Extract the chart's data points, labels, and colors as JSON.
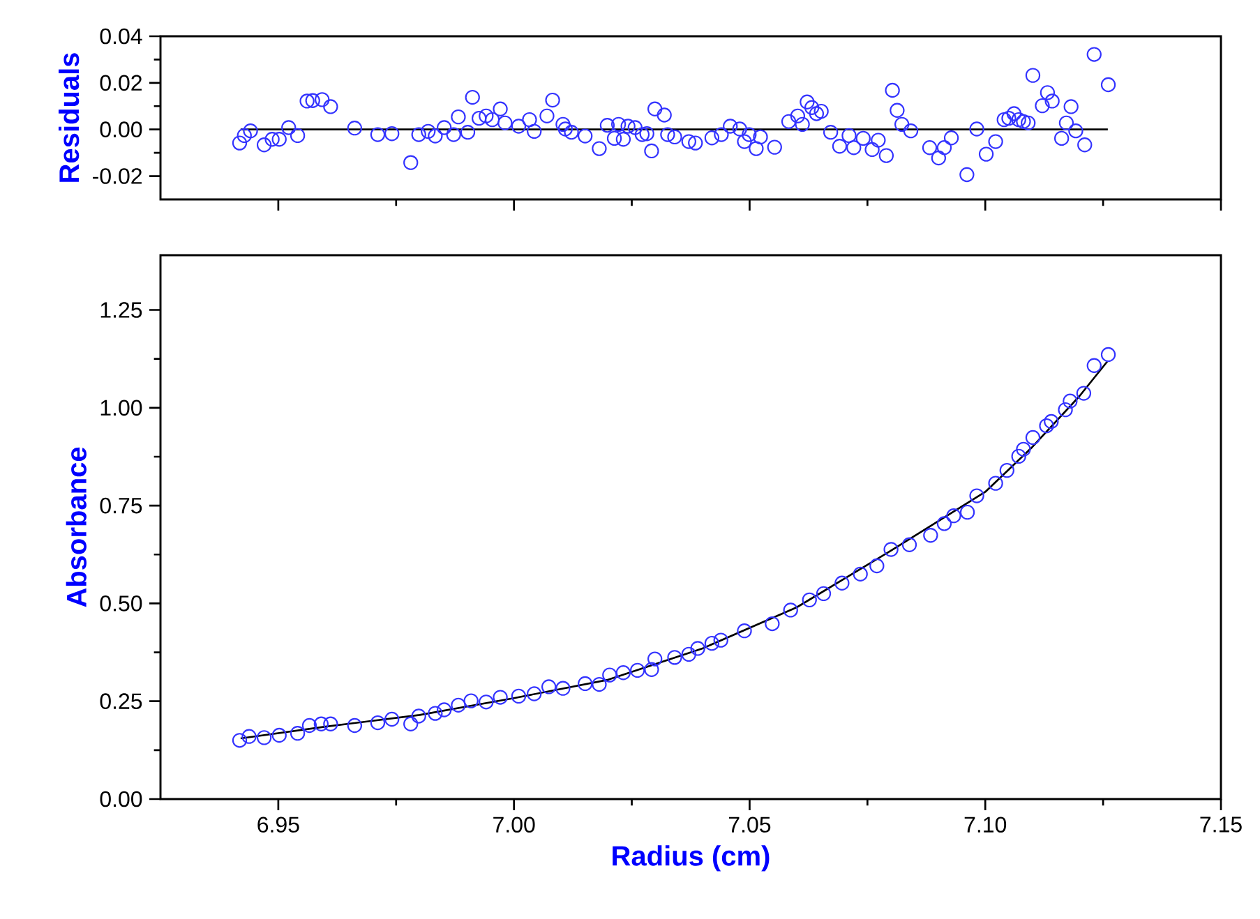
{
  "chart_data": [
    {
      "type": "scatter",
      "ylabel": "Residuals",
      "xlim": [
        6.925,
        7.15
      ],
      "ylim": [
        -0.03,
        0.04
      ],
      "xticks": [
        6.95,
        7.0,
        7.05,
        7.1,
        7.15
      ],
      "yticks": [
        {
          "value": 0.04,
          "label": "0.04"
        },
        {
          "value": 0.02,
          "label": "0.02"
        },
        {
          "value": 0.0,
          "label": "0.00"
        },
        {
          "value": -0.02,
          "label": "-0.02"
        }
      ],
      "tick_labels": "y",
      "series": [
        {
          "marker": "circle",
          "color": "#3333ff",
          "x": [
            6.9418,
            6.9428,
            6.9441,
            6.947,
            6.9487,
            6.9502,
            6.9522,
            6.9541,
            6.9561,
            6.9573,
            6.9593,
            6.9611,
            6.9662,
            6.9711,
            6.9741,
            6.9781,
            6.9798,
            6.9818,
            6.9833,
            6.9852,
            6.9872,
            6.9882,
            6.9902,
            6.9912,
            6.9926,
            6.9941,
            6.9954,
            6.9971,
            6.9981,
            7.001,
            7.0033,
            7.0043,
            7.007,
            7.0082,
            7.0104,
            7.0109,
            7.0122,
            7.0151,
            7.0181,
            7.0198,
            7.0213,
            7.0222,
            7.0232,
            7.0242,
            7.0257,
            7.0272,
            7.0282,
            7.0292,
            7.0299,
            7.0319,
            7.0326,
            7.0341,
            7.0371,
            7.0385,
            7.042,
            7.044,
            7.0459,
            7.0479,
            7.0489,
            7.0499,
            7.0514,
            7.0523,
            7.0553,
            7.0583,
            7.0602,
            7.0612,
            7.0622,
            7.0632,
            7.0642,
            7.0652,
            7.0672,
            7.0691,
            7.0711,
            7.0721,
            7.0741,
            7.076,
            7.0773,
            7.079,
            7.0803,
            7.0813,
            7.0823,
            7.0842,
            7.0882,
            7.0901,
            7.0913,
            7.0928,
            7.0961,
            7.0982,
            7.1002,
            7.1022,
            7.104,
            7.105,
            7.1061,
            7.1071,
            7.1081,
            7.1091,
            7.1101,
            7.1121,
            7.1132,
            7.1142,
            7.1162,
            7.1172,
            7.1182,
            7.1192,
            7.1211,
            7.1231,
            7.1261
          ],
          "values": [
            -0.0058,
            -0.0026,
            -0.0006,
            -0.0066,
            -0.0042,
            -0.0042,
            0.0008,
            -0.0026,
            0.0122,
            0.0124,
            0.0128,
            0.0098,
            0.0006,
            -0.0022,
            -0.0018,
            -0.0142,
            -0.0022,
            -0.0008,
            -0.0028,
            0.0008,
            -0.0022,
            0.0054,
            -0.0012,
            0.0138,
            0.0048,
            0.0058,
            0.0042,
            0.0088,
            0.0028,
            0.0014,
            0.0042,
            -0.0008,
            0.0058,
            0.0126,
            0.0022,
            0.0002,
            -0.0012,
            -0.0028,
            -0.0082,
            0.0018,
            -0.0038,
            0.0022,
            -0.0042,
            0.0014,
            0.0008,
            -0.0022,
            -0.0018,
            -0.0092,
            0.0088,
            0.0062,
            -0.0022,
            -0.0032,
            -0.0052,
            -0.0058,
            -0.0036,
            -0.0022,
            0.0014,
            0.0002,
            -0.0052,
            -0.0022,
            -0.0082,
            -0.0032,
            -0.0076,
            0.0034,
            0.0058,
            0.0022,
            0.0118,
            0.0094,
            0.0068,
            0.0078,
            -0.0012,
            -0.0072,
            -0.0026,
            -0.0078,
            -0.0038,
            -0.0086,
            -0.0046,
            -0.0112,
            0.0168,
            0.0082,
            0.0022,
            -0.0006,
            -0.0078,
            -0.0122,
            -0.0078,
            -0.0036,
            -0.0194,
            0.0002,
            -0.0106,
            -0.0052,
            0.0042,
            0.0048,
            0.0068,
            0.0042,
            0.0034,
            0.0028,
            0.0232,
            0.0102,
            0.0158,
            0.0122,
            -0.0038,
            0.0028,
            0.0098,
            -0.0006,
            -0.0066,
            0.0322,
            0.0192
          ]
        },
        {
          "type": "line",
          "marker": "none",
          "color": "#000000",
          "x": [
            6.942,
            7.126
          ],
          "values": [
            0,
            0
          ]
        }
      ]
    },
    {
      "type": "scatter",
      "xlabel": "Radius (cm)",
      "ylabel": "Absorbance",
      "xlim": [
        6.925,
        7.15
      ],
      "ylim": [
        0,
        1.39
      ],
      "xticks": [
        6.95,
        {
          "value": 7.0,
          "label": "7.00"
        },
        7.05,
        {
          "value": 7.1,
          "label": "7.10"
        },
        7.15
      ],
      "yticks": [
        {
          "value": 0,
          "label": "0.00"
        },
        {
          "value": 0.25,
          "label": "0.25"
        },
        {
          "value": 0.5,
          "label": "0.50"
        },
        {
          "value": 0.75,
          "label": "0.75"
        },
        {
          "value": 1.0,
          "label": "1.00"
        },
        {
          "value": 1.25,
          "label": "1.25"
        }
      ],
      "series": [
        {
          "marker": "circle",
          "color": "#3333ff",
          "x": [
            6.9418,
            6.9438,
            6.947,
            6.9502,
            6.9541,
            6.9566,
            6.9591,
            6.9611,
            6.9662,
            6.9711,
            6.9741,
            6.9781,
            6.9798,
            6.9833,
            6.9852,
            6.9882,
            6.9909,
            6.9941,
            6.9971,
            7.001,
            7.0043,
            7.0074,
            7.0104,
            7.0151,
            7.0181,
            7.0203,
            7.0232,
            7.0262,
            7.0292,
            7.0299,
            7.0341,
            7.0371,
            7.039,
            7.042,
            7.0439,
            7.0489,
            7.0548,
            7.0587,
            7.0627,
            7.0657,
            7.0696,
            7.0735,
            7.077,
            7.08,
            7.0839,
            7.0884,
            7.0913,
            7.0933,
            7.0962,
            7.0982,
            7.1022,
            7.1046,
            7.1071,
            7.1081,
            7.1101,
            7.113,
            7.114,
            7.117,
            7.118,
            7.1209,
            7.1231,
            7.1261
          ],
          "values": [
            0.15,
            0.16,
            0.157,
            0.163,
            0.168,
            0.188,
            0.192,
            0.192,
            0.188,
            0.195,
            0.204,
            0.192,
            0.212,
            0.219,
            0.228,
            0.24,
            0.251,
            0.248,
            0.26,
            0.263,
            0.269,
            0.287,
            0.283,
            0.295,
            0.293,
            0.317,
            0.323,
            0.329,
            0.331,
            0.358,
            0.362,
            0.37,
            0.385,
            0.398,
            0.406,
            0.43,
            0.448,
            0.483,
            0.509,
            0.525,
            0.552,
            0.575,
            0.596,
            0.638,
            0.65,
            0.674,
            0.704,
            0.724,
            0.733,
            0.775,
            0.807,
            0.84,
            0.876,
            0.894,
            0.924,
            0.954,
            0.965,
            0.995,
            1.017,
            1.037,
            1.108,
            1.136
          ]
        },
        {
          "type": "line",
          "marker": "none",
          "color": "#000000",
          "x": [
            6.942,
            6.96,
            6.98,
            7.0,
            7.02,
            7.04,
            7.06,
            7.08,
            7.1,
            7.11,
            7.12,
            7.126
          ],
          "values": [
            0.155,
            0.185,
            0.215,
            0.258,
            0.305,
            0.385,
            0.49,
            0.635,
            0.785,
            0.9,
            1.03,
            1.12
          ]
        }
      ]
    }
  ]
}
